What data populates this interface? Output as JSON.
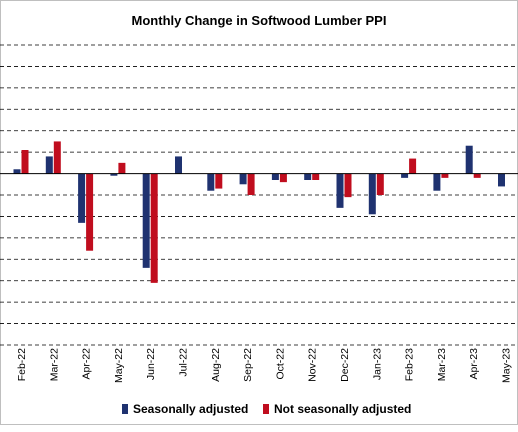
{
  "chart_data": {
    "type": "bar",
    "title": "Monthly Change in Softwood Lumber PPI",
    "xlabel": "",
    "ylabel": "",
    "categories": [
      "Feb-22",
      "Mar-22",
      "Apr-22",
      "May-22",
      "Jun-22",
      "Jul-22",
      "Aug-22",
      "Sep-22",
      "Oct-22",
      "Nov-22",
      "Dec-22",
      "Jan-23",
      "Feb-23",
      "Mar-23",
      "Apr-23",
      "May-23"
    ],
    "ylim": [
      -8,
      6
    ],
    "grid": true,
    "legend_position": "bottom",
    "series": [
      {
        "name": "Seasonally adjusted",
        "color": "#1f3270",
        "values": [
          0.2,
          0.8,
          -2.3,
          -0.1,
          -4.4,
          0.8,
          -0.8,
          -0.5,
          -0.3,
          -0.3,
          -1.6,
          -1.9,
          -0.2,
          -0.8,
          1.3,
          -0.6
        ]
      },
      {
        "name": "Not seasonally adjusted",
        "color": "#c00d1e",
        "values": [
          1.1,
          1.5,
          -3.6,
          0.5,
          -5.1,
          null,
          -0.7,
          -1.0,
          -0.4,
          -0.3,
          -1.1,
          -1.0,
          0.7,
          -0.2,
          -0.2,
          null
        ]
      }
    ]
  }
}
